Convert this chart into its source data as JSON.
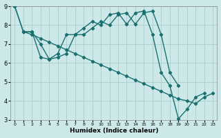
{
  "xlabel": "Humidex (Indice chaleur)",
  "xlim": [
    -0.5,
    23.5
  ],
  "ylim": [
    3,
    9
  ],
  "yticks": [
    3,
    4,
    5,
    6,
    7,
    8,
    9
  ],
  "xticks": [
    0,
    1,
    2,
    3,
    4,
    5,
    6,
    7,
    8,
    9,
    10,
    11,
    12,
    13,
    14,
    15,
    16,
    17,
    18,
    19,
    20,
    21,
    22,
    23
  ],
  "bg_color": "#cce8e8",
  "grid_color": "#b0d0d0",
  "line_color": "#1a7070",
  "line1_x": [
    0,
    1,
    2,
    3,
    4,
    5,
    6,
    7,
    8,
    9,
    10,
    11,
    12,
    13,
    14,
    15,
    16,
    17,
    18,
    19,
    20,
    21,
    22
  ],
  "line1_y": [
    9.0,
    7.65,
    7.65,
    6.3,
    6.2,
    6.5,
    7.5,
    7.5,
    7.85,
    8.2,
    8.0,
    8.55,
    8.65,
    8.05,
    8.65,
    8.75,
    7.5,
    5.5,
    4.8,
    3.05,
    3.55,
    4.2,
    4.4
  ],
  "line2_x": [
    0,
    1,
    2,
    3,
    4,
    5,
    6,
    7,
    8,
    9,
    10,
    11,
    12,
    13,
    14,
    15,
    16,
    17,
    18,
    19,
    20,
    21,
    22,
    23
  ],
  "line2_y": [
    9.0,
    7.65,
    7.5,
    7.3,
    7.1,
    6.9,
    6.7,
    6.5,
    6.3,
    6.1,
    5.9,
    5.7,
    5.5,
    5.3,
    5.1,
    4.9,
    4.7,
    4.5,
    4.3,
    4.1,
    4.0,
    3.85,
    4.2,
    4.4
  ],
  "line3_x": [
    1,
    2,
    3,
    4,
    5,
    6,
    7,
    8,
    9,
    10,
    11,
    12,
    13,
    14,
    15,
    16,
    17,
    18,
    19
  ],
  "line3_y": [
    7.65,
    7.65,
    7.0,
    6.2,
    6.3,
    6.5,
    7.5,
    7.5,
    7.85,
    8.2,
    8.0,
    8.55,
    8.65,
    8.05,
    8.65,
    8.75,
    7.5,
    5.5,
    4.8
  ]
}
